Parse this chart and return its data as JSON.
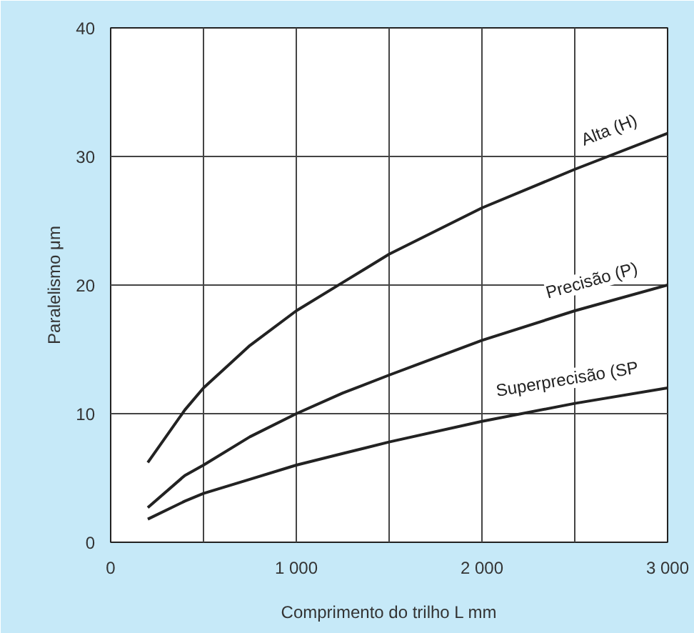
{
  "chart_data": {
    "type": "line",
    "xlabel": "Comprimento do trilho L mm",
    "ylabel": "Paralelismo μm",
    "xlim": [
      0,
      3000
    ],
    "ylim": [
      0,
      40
    ],
    "xticks": [
      0,
      {
        "value": 500,
        "label": null
      },
      {
        "value": 1000,
        "label": "1 000"
      },
      {
        "value": 1500,
        "label": null
      },
      {
        "value": 2000,
        "label": "2 000"
      },
      {
        "value": 2500,
        "label": null
      },
      {
        "value": 3000,
        "label": "3 000"
      }
    ],
    "yticks": [
      0,
      10,
      20,
      30,
      40
    ],
    "grid": true,
    "marker": "none",
    "line_style": "solid",
    "x": [
      200,
      400,
      500,
      750,
      1000,
      1250,
      1500,
      2000,
      2500,
      3000
    ],
    "series": [
      {
        "name": "Alta (H)",
        "color": "#222222",
        "values": [
          6.2,
          10.3,
          12,
          15.3,
          18,
          20.2,
          22.4,
          26,
          29,
          31.8
        ]
      },
      {
        "name": "Precisão (P)",
        "color": "#222222",
        "values": [
          2.7,
          5.2,
          6,
          8.2,
          10,
          11.6,
          13,
          15.7,
          18,
          20
        ]
      },
      {
        "name": "Superprecisão (SP",
        "color": "#222222",
        "values": [
          1.8,
          3.2,
          3.8,
          4.9,
          6,
          6.9,
          7.8,
          9.4,
          10.8,
          12
        ]
      }
    ]
  }
}
